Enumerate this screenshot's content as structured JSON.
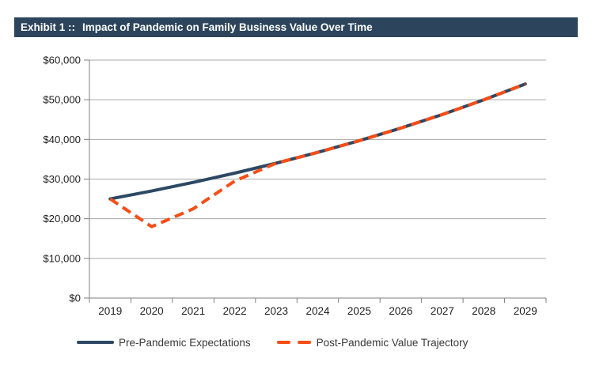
{
  "header": {
    "label": "Exhibit 1 ::",
    "title": "Impact of Pandemic on Family Business Value Over Time"
  },
  "colors": {
    "header_bg": "#2C455C",
    "pre_line": "#2C4863",
    "post_line": "#F74D16",
    "gridline": "#A8A8A8",
    "axis": "#7F7F7F",
    "tick_label": "#1F1F1F"
  },
  "chart_data": {
    "type": "line",
    "x": [
      2019,
      2020,
      2021,
      2022,
      2023,
      2024,
      2025,
      2026,
      2027,
      2028,
      2029
    ],
    "series": [
      {
        "name": "Pre-Pandemic Expectations",
        "style": "solid",
        "color": "#2C4863",
        "values": [
          25000,
          27000,
          29160,
          31493,
          34012,
          36733,
          39672,
          42846,
          46273,
          49975,
          53973
        ]
      },
      {
        "name": "Post-Pandemic Value Trajectory",
        "style": "dashed",
        "color": "#F74D16",
        "values": [
          25000,
          18000,
          22500,
          29500,
          34012,
          36733,
          39672,
          42846,
          46273,
          49975,
          53973
        ]
      }
    ],
    "title": "Exhibit 1 :: Impact of Pandemic on Family Business Value Over Time",
    "xlabel": "",
    "ylabel": "",
    "ylim": [
      0,
      60000
    ],
    "ytick_step": 10000,
    "ytick_labels": [
      "$0",
      "$10,000",
      "$20,000",
      "$30,000",
      "$40,000",
      "$50,000",
      "$60,000"
    ],
    "grid": "horizontal",
    "legend_position": "bottom-center"
  }
}
